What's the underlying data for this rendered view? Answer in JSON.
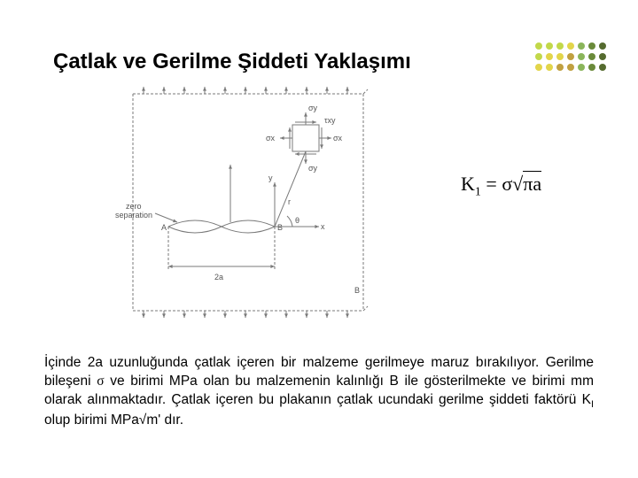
{
  "title": "Çatlak ve Gerilme Şiddeti Yaklaşımı",
  "formula": {
    "lhs": "K",
    "sub": "1",
    "rhs_sigma": "σ",
    "rhs_sqrt": "πa"
  },
  "body": {
    "p1a": "İçinde 2a uzunluğunda çatlak içeren bir malzeme gerilmeye maruz bırakılıyor. Gerilme bileşeni ",
    "p1b": " ve birimi MPa olan bu malzemenin kalınlığı B ile gösterilmekte ve birimi mm olarak alınmaktadır. Çatlak içeren bu plakanın çatlak ucundaki gerilme şiddeti faktörü K",
    "p1c": " olup birimi MPa√m' dır.",
    "sigma": "σ",
    "ksub": "I"
  },
  "diagram": {
    "labels": {
      "sigma_y_top": "σy",
      "sigma_y_bot": "σy",
      "sigma_x_l": "σx",
      "sigma_x_r": "σx",
      "tau": "τxy",
      "y": "y",
      "x": "x",
      "r": "r",
      "theta": "θ",
      "A": "A",
      "B": "B",
      "twoa": "2a",
      "zero": "zero",
      "sep": "separation",
      "B_r": "B"
    },
    "stroke": "#7a7a7a",
    "text_color": "#555555"
  },
  "dots_palette": [
    "#c2d84a",
    "#c2d84a",
    "#c2d84a",
    "#e2d54a",
    "#8ab55a",
    "#6a8a3a",
    "#556b2f",
    "#c2d84a",
    "#e2d54a",
    "#e2d54a",
    "#c0a040",
    "#8ab55a",
    "#6a8a3a",
    "#556b2f",
    "#e2d54a",
    "#e2d54a",
    "#c0a040",
    "#c0a040",
    "#8ab55a",
    "#6a8a3a",
    "#556b2f"
  ]
}
